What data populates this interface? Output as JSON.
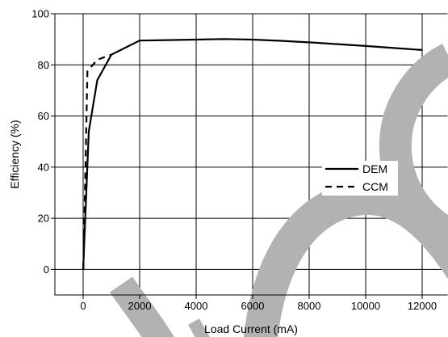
{
  "chart_data": {
    "type": "line",
    "xlabel": "Load Current (mA)",
    "ylabel": "Efficiency (%)",
    "xlim": [
      -1000,
      12900
    ],
    "ylim": [
      -10,
      100
    ],
    "xticks": [
      0,
      2000,
      4000,
      6000,
      8000,
      10000,
      12000
    ],
    "yticks": [
      0,
      20,
      40,
      60,
      80,
      100
    ],
    "grid": true,
    "legend": "center-right",
    "series": [
      {
        "name": "DEM",
        "dashed": false,
        "color": "#000000",
        "x": [
          0,
          200,
          500,
          1000,
          2000,
          3000,
          4000,
          5000,
          6000,
          7000,
          8000,
          10000,
          12000
        ],
        "y": [
          0,
          54,
          74,
          84,
          89.5,
          89.7,
          89.9,
          90.1,
          89.9,
          89.4,
          88.8,
          87.4,
          85.8
        ]
      },
      {
        "name": "CCM",
        "dashed": true,
        "color": "#000000",
        "x": [
          10,
          150,
          500,
          1000
        ],
        "y": [
          0,
          77.5,
          82,
          84
        ]
      }
    ]
  },
  "colors": {
    "axis": "#000000",
    "background": "#ffffff",
    "watermark": "#b2b2b2"
  }
}
